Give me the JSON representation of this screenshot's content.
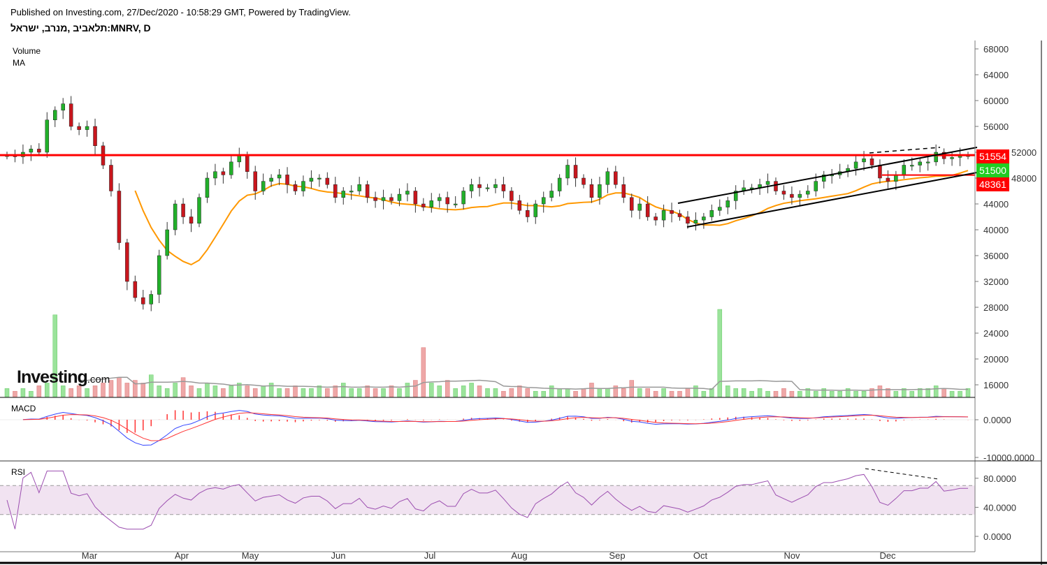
{
  "header": {
    "published": "Published on Investing.com, 27/Dec/2020 - 10:58:29 GMT, Powered by TradingView.",
    "symbol": "תלאביב ,מנרב, ישראל:MNRV, D"
  },
  "legend": {
    "volume": "Volume",
    "ma": "MA",
    "macd": "MACD",
    "rsi": "RSI"
  },
  "logo": {
    "main": "Investing",
    "suffix": ".com"
  },
  "colors": {
    "up": "#22b02a",
    "down": "#c8161d",
    "ma": "#ff9800",
    "level": "#ff0000",
    "macd": "#3344ff",
    "signal": "#ff3333",
    "rsi": "#9c4fb0",
    "rsi_band": "#f1e3f1"
  },
  "chart_data": [
    {
      "type": "candlestick",
      "title": "MNRV, D",
      "x_ticks": [
        "Mar",
        "Apr",
        "May",
        "Jun",
        "Jul",
        "Aug",
        "Sep",
        "Oct",
        "Nov",
        "Dec"
      ],
      "y_ticks": [
        "68000",
        "64000",
        "60000",
        "56000",
        "52000",
        "48000",
        "44000",
        "40000",
        "36000",
        "32000",
        "28000",
        "24000",
        "20000",
        "16000"
      ],
      "ylim": [
        16000,
        68000
      ],
      "ma_period": 10,
      "closes": [
        51500,
        51300,
        52000,
        52500,
        52000,
        57000,
        58500,
        59500,
        56000,
        55500,
        56000,
        53000,
        50000,
        46000,
        38000,
        32000,
        29500,
        28500,
        30000,
        36000,
        40000,
        44000,
        42000,
        41000,
        45000,
        48000,
        49000,
        48500,
        50500,
        51500,
        49000,
        46000,
        47500,
        48000,
        48500,
        47000,
        46000,
        47500,
        48000,
        48000,
        47000,
        45000,
        46000,
        46000,
        47000,
        45000,
        44500,
        45000,
        44500,
        45500,
        46000,
        44000,
        43500,
        44500,
        45000,
        44000,
        44000,
        46000,
        47000,
        46500,
        46500,
        47000,
        46000,
        44500,
        43000,
        42000,
        44000,
        45000,
        46000,
        48000,
        50000,
        48000,
        47000,
        45000,
        47000,
        49000,
        47000,
        45000,
        43000,
        44000,
        42000,
        41500,
        43000,
        42500,
        42000,
        41000,
        41500,
        42000,
        43000,
        43500,
        44500,
        46000,
        46500,
        46500,
        47000,
        47500,
        46000,
        45500,
        45000,
        45500,
        46000,
        47500,
        48500,
        48500,
        49000,
        49500,
        50500,
        51000,
        50000,
        48000,
        47500,
        48500,
        50000,
        50000,
        50500,
        50500,
        52000,
        51000,
        51200,
        51500,
        51500
      ],
      "volume": [
        3,
        2,
        3,
        2,
        4,
        5,
        30,
        4,
        3,
        4,
        3,
        4,
        5,
        6,
        7,
        5,
        6,
        5,
        8,
        4,
        3,
        5,
        7,
        4,
        3,
        5,
        4,
        3,
        4,
        5,
        4,
        3,
        4,
        5,
        3,
        3,
        4,
        3,
        3,
        4,
        3,
        4,
        5,
        3,
        3,
        4,
        3,
        3,
        4,
        3,
        5,
        6,
        18,
        5,
        4,
        6,
        3,
        4,
        5,
        4,
        3,
        3,
        2,
        3,
        4,
        3,
        2,
        2,
        4,
        3,
        3,
        2,
        3,
        5,
        3,
        3,
        4,
        3,
        6,
        3,
        3,
        2,
        3,
        2,
        2,
        3,
        4,
        2,
        3,
        32,
        4,
        3,
        3,
        2,
        3,
        2,
        2,
        3,
        2,
        2,
        3,
        2,
        3,
        2,
        2,
        3,
        2,
        2,
        3,
        4,
        3,
        2,
        3,
        2,
        3,
        3,
        4,
        3,
        2,
        2,
        3
      ],
      "price_labels": [
        {
          "value": "51554",
          "color": "#ff0000"
        },
        {
          "value": "51500",
          "color": "#22cc22"
        },
        {
          "value": "48361",
          "color": "#ff0000"
        }
      ],
      "levels": [
        51554,
        48361
      ]
    },
    {
      "type": "line",
      "title": "MACD",
      "params": [
        12,
        26,
        9
      ],
      "y_ticks": [
        "0.0000",
        "-10000.0000"
      ]
    },
    {
      "type": "line",
      "title": "RSI",
      "period": 14,
      "y_ticks": [
        "80.0000",
        "40.0000",
        "0.0000"
      ],
      "bands": [
        30,
        70
      ]
    }
  ]
}
